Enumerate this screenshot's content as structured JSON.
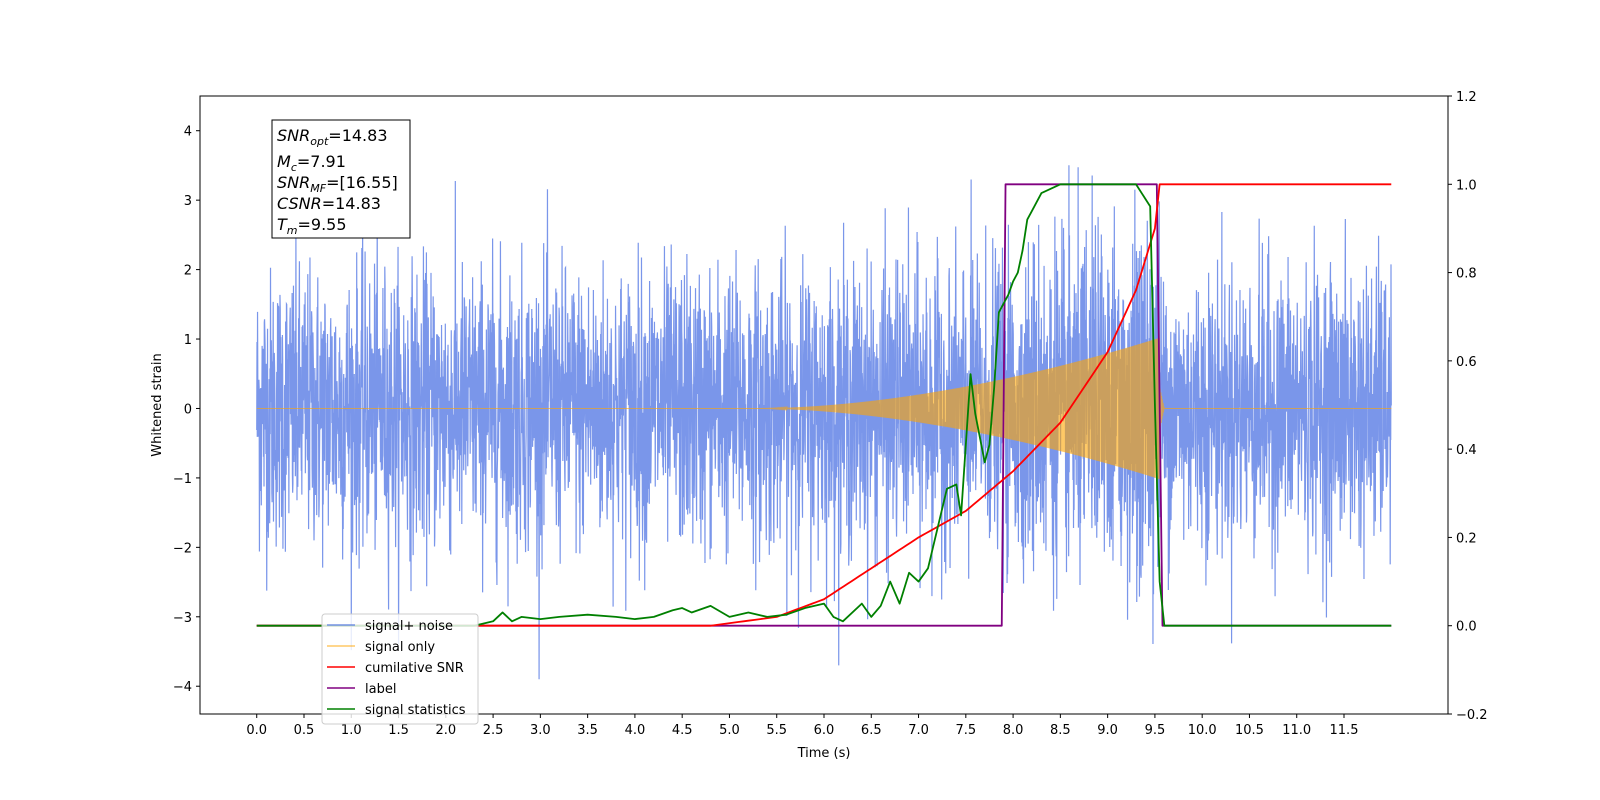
{
  "chart_data": {
    "type": "line",
    "xlabel": "Time (s)",
    "ylabel_left": "Whitened strain",
    "ylabel_right": "",
    "xlim": [
      -0.6,
      12.6
    ],
    "ylim_left": [
      -4.4,
      4.5
    ],
    "ylim_right": [
      -0.2,
      1.2
    ],
    "x_ticks": [
      "0.0",
      "0.5",
      "1.0",
      "1.5",
      "2.0",
      "2.5",
      "3.0",
      "3.5",
      "4.0",
      "4.5",
      "5.0",
      "5.5",
      "6.0",
      "6.5",
      "7.0",
      "7.5",
      "8.0",
      "8.5",
      "9.0",
      "9.5",
      "10.0",
      "10.5",
      "11.0",
      "11.5"
    ],
    "y_ticks_left": [
      "-4",
      "-3",
      "-2",
      "-1",
      "0",
      "1",
      "2",
      "3",
      "4"
    ],
    "y_ticks_right": [
      "-0.2",
      "0.0",
      "0.2",
      "0.4",
      "0.6",
      "0.8",
      "1.0",
      "1.2"
    ],
    "grid": false,
    "legend_position": "lower-left",
    "colors": {
      "signal_noise": "#4169e1",
      "signal_only": "#ffa500",
      "cumulative_snr": "#ff0000",
      "label": "#800080",
      "signal_statistics": "#008000"
    },
    "series": [
      {
        "name": "signal+ noise",
        "axis": "left",
        "kind": "noise",
        "x_range": [
          0.0,
          12.0
        ],
        "amplitude_sigma": 1.0,
        "clip": [
          -3.9,
          4.1
        ]
      },
      {
        "name": "signal only",
        "axis": "left",
        "kind": "chirp",
        "onset": 5.3,
        "merger": 9.55,
        "peak_amplitude": 1.05
      },
      {
        "name": "cumilative SNR",
        "axis": "right",
        "x": [
          0.0,
          4.8,
          5.5,
          6.0,
          6.5,
          7.0,
          7.5,
          8.0,
          8.5,
          9.0,
          9.3,
          9.5,
          9.55,
          12.0
        ],
        "y": [
          0.0,
          0.0,
          0.02,
          0.06,
          0.13,
          0.2,
          0.26,
          0.35,
          0.46,
          0.62,
          0.76,
          0.9,
          1.0,
          1.0
        ]
      },
      {
        "name": "label",
        "axis": "right",
        "x": [
          0.0,
          7.88,
          7.92,
          9.5,
          9.52,
          9.58,
          12.0
        ],
        "y": [
          0.0,
          0.0,
          1.0,
          1.0,
          1.0,
          0.0,
          0.0
        ]
      },
      {
        "name": "signal statistics",
        "axis": "right",
        "x": [
          0.0,
          2.3,
          2.4,
          2.5,
          2.6,
          2.7,
          2.8,
          3.0,
          3.2,
          3.5,
          3.8,
          4.0,
          4.2,
          4.4,
          4.5,
          4.6,
          4.8,
          5.0,
          5.2,
          5.4,
          5.6,
          5.8,
          6.0,
          6.1,
          6.2,
          6.4,
          6.5,
          6.6,
          6.7,
          6.8,
          6.9,
          7.0,
          7.1,
          7.2,
          7.3,
          7.4,
          7.45,
          7.5,
          7.55,
          7.6,
          7.7,
          7.75,
          7.8,
          7.85,
          7.9,
          7.95,
          8.0,
          8.05,
          8.1,
          8.15,
          8.2,
          8.3,
          8.4,
          8.5,
          9.0,
          9.3,
          9.45,
          9.5,
          9.55,
          9.6,
          12.0
        ],
        "y": [
          0.0,
          0.0,
          0.005,
          0.01,
          0.03,
          0.01,
          0.02,
          0.015,
          0.02,
          0.025,
          0.02,
          0.015,
          0.02,
          0.035,
          0.04,
          0.03,
          0.045,
          0.02,
          0.03,
          0.02,
          0.025,
          0.04,
          0.05,
          0.02,
          0.01,
          0.05,
          0.02,
          0.045,
          0.1,
          0.05,
          0.12,
          0.1,
          0.13,
          0.22,
          0.31,
          0.32,
          0.25,
          0.41,
          0.57,
          0.48,
          0.37,
          0.41,
          0.54,
          0.71,
          0.73,
          0.75,
          0.78,
          0.8,
          0.85,
          0.92,
          0.94,
          0.98,
          0.99,
          1.0,
          1.0,
          1.0,
          0.95,
          0.5,
          0.1,
          0.0,
          0.0
        ]
      }
    ]
  },
  "legend": {
    "items": [
      "signal+ noise",
      "signal only",
      "cumilative SNR",
      "label",
      "signal statistics"
    ]
  },
  "annotation": {
    "snr_opt": {
      "base": "SNR",
      "sub": "opt",
      "value": "=14.83"
    },
    "mc": {
      "base": "M",
      "sub": "c",
      "value": "=7.91"
    },
    "snr_mf": {
      "base": "SNR",
      "sub": "MF",
      "value": "=[16.55]"
    },
    "csnr": {
      "base": "CSNR",
      "value": "=14.83"
    },
    "tm": {
      "base": "T",
      "sub": "m",
      "value": "=9.55"
    }
  }
}
